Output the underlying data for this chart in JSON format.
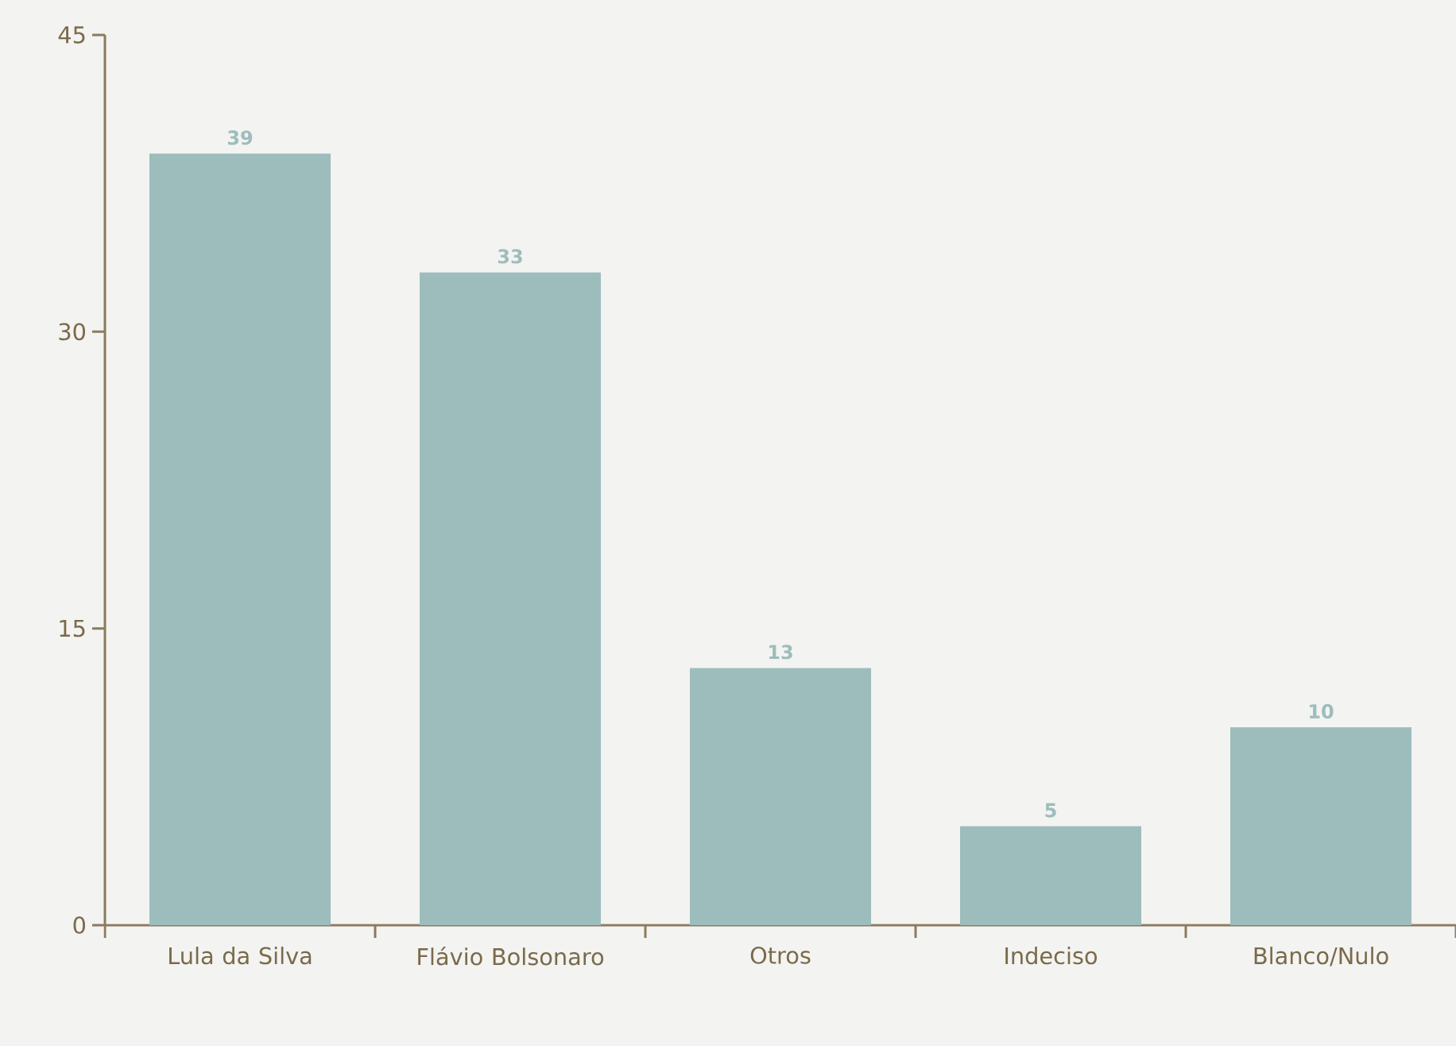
{
  "chart_data": {
    "type": "bar",
    "categories": [
      "Lula da Silva",
      "Flávio Bolsonaro",
      "Otros",
      "Indeciso",
      "Blanco/Nulo"
    ],
    "values": [
      39,
      33,
      13,
      5,
      10
    ],
    "color": "#9dbdbc",
    "ylim": [
      0,
      45
    ],
    "yticks": [
      0,
      15,
      30,
      45
    ],
    "data_labels": true,
    "grid": false
  }
}
